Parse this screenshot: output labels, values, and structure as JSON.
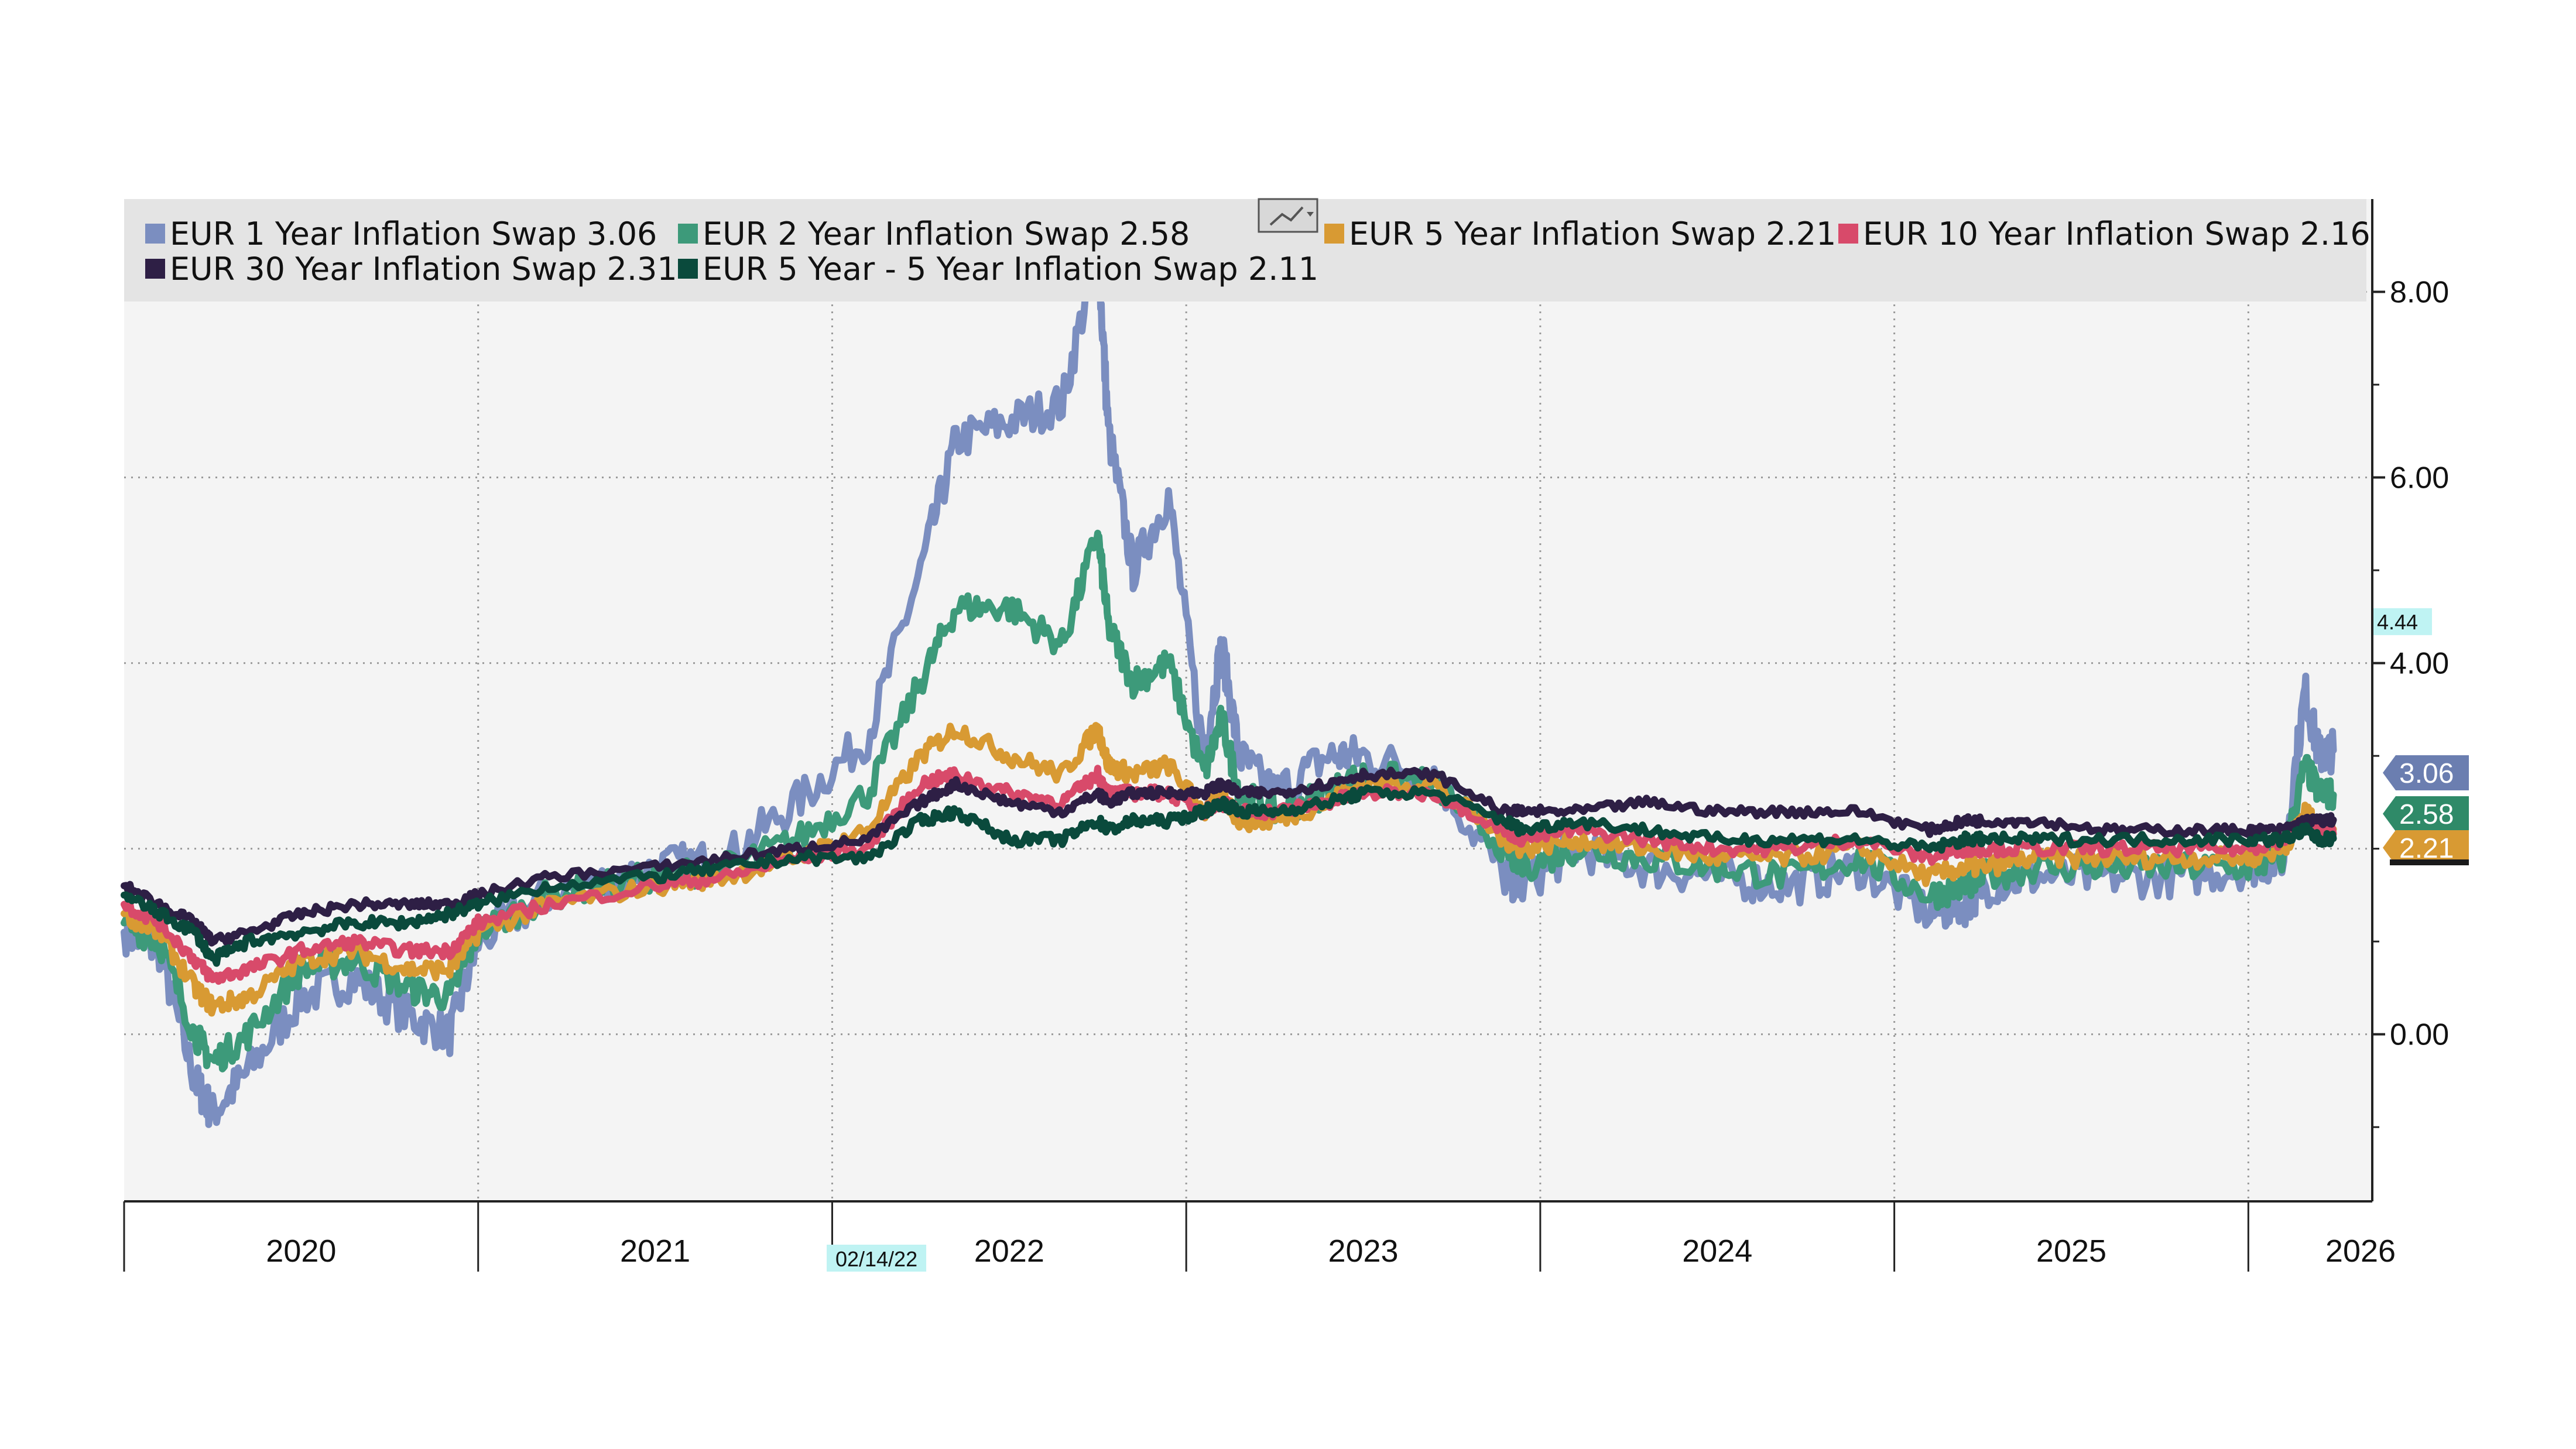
{
  "chart_data": {
    "type": "line",
    "title": "",
    "xlabel": "",
    "ylabel": "",
    "xlim": [
      2019.5,
      2025.85
    ],
    "ylim": [
      -1.8,
      9.0
    ],
    "y_ticks": [
      "0.00",
      "4.00",
      "6.00",
      "8.00"
    ],
    "y_tick_values": [
      0,
      4,
      6,
      8
    ],
    "x_ticks": [
      "2020",
      "2021",
      "2022",
      "2023",
      "2024",
      "2025",
      "2026"
    ],
    "x_tick_positions": [
      2020.0,
      2021.0,
      2022.0,
      2023.0,
      2024.0,
      2025.0,
      2026.0
    ],
    "year_boundaries": [
      2019.5,
      2020.5,
      2021.5,
      2022.5,
      2023.5,
      2024.5,
      2025.5
    ],
    "grid": true,
    "legend_position": "top",
    "crosshair": {
      "date": "02/14/22",
      "x": 2021.625,
      "value": "4.44",
      "y": 4.44
    },
    "series": [
      {
        "name": "EUR 1 Year Inflation Swap",
        "last": "3.06",
        "color": "#7b8ec0",
        "x": [
          2019.5,
          2019.6,
          2019.7,
          2019.75,
          2019.85,
          2020.0,
          2020.15,
          2020.3,
          2020.42,
          2020.5,
          2020.7,
          2021.0,
          2021.2,
          2021.4,
          2021.6,
          2021.75,
          2021.85,
          2022.0,
          2022.15,
          2022.25,
          2022.28,
          2022.35,
          2022.45,
          2022.55,
          2022.6,
          2022.65,
          2022.75,
          2022.9,
          2023.0,
          2023.2,
          2023.4,
          2023.45,
          2023.6,
          2023.8,
          2024.0,
          2024.2,
          2024.4,
          2024.6,
          2024.7,
          2024.75,
          2024.9,
          2025.1,
          2025.3,
          2025.5,
          2025.6,
          2025.66,
          2025.7,
          2025.74
        ],
        "y": [
          1.1,
          0.9,
          -0.5,
          -0.85,
          -0.4,
          0.4,
          0.6,
          0.2,
          0.0,
          1.0,
          1.5,
          1.8,
          1.9,
          2.5,
          3.2,
          5.0,
          6.4,
          6.6,
          6.8,
          8.5,
          6.5,
          5.0,
          5.8,
          3.0,
          4.2,
          3.0,
          2.6,
          3.0,
          3.0,
          2.8,
          1.7,
          1.6,
          2.0,
          1.8,
          1.7,
          1.6,
          1.8,
          1.3,
          1.4,
          1.6,
          1.7,
          1.7,
          1.7,
          1.8,
          1.9,
          3.7,
          3.0,
          3.06
        ]
      },
      {
        "name": "EUR 2 Year Inflation Swap",
        "last": "2.58",
        "color": "#3d9a7a",
        "x": [
          2019.5,
          2019.6,
          2019.7,
          2019.75,
          2019.85,
          2020.0,
          2020.15,
          2020.3,
          2020.42,
          2020.5,
          2020.7,
          2021.0,
          2021.2,
          2021.4,
          2021.6,
          2021.75,
          2021.85,
          2022.0,
          2022.15,
          2022.25,
          2022.28,
          2022.35,
          2022.45,
          2022.55,
          2022.6,
          2022.65,
          2022.75,
          2022.9,
          2023.0,
          2023.2,
          2023.4,
          2023.45,
          2023.6,
          2023.8,
          2024.0,
          2024.2,
          2024.4,
          2024.6,
          2024.7,
          2024.75,
          2024.9,
          2025.1,
          2025.3,
          2025.5,
          2025.6,
          2025.66,
          2025.7,
          2025.74
        ],
        "y": [
          1.2,
          1.0,
          0.0,
          -0.3,
          0.0,
          0.7,
          0.8,
          0.5,
          0.4,
          1.1,
          1.5,
          1.7,
          1.8,
          2.1,
          2.6,
          3.8,
          4.6,
          4.6,
          4.2,
          5.4,
          4.4,
          3.8,
          4.0,
          2.8,
          3.4,
          2.6,
          2.4,
          2.6,
          2.8,
          2.7,
          2.0,
          1.8,
          2.0,
          1.9,
          1.8,
          1.7,
          1.9,
          1.5,
          1.6,
          1.7,
          1.8,
          1.8,
          1.8,
          1.8,
          1.9,
          2.9,
          2.6,
          2.58
        ]
      },
      {
        "name": "EUR 5 Year Inflation Swap",
        "last": "2.21",
        "color": "#d89a33",
        "x": [
          2019.5,
          2019.6,
          2019.7,
          2019.75,
          2019.85,
          2020.0,
          2020.15,
          2020.3,
          2020.42,
          2020.5,
          2020.7,
          2021.0,
          2021.2,
          2021.4,
          2021.6,
          2021.75,
          2021.85,
          2022.0,
          2022.15,
          2022.25,
          2022.28,
          2022.35,
          2022.45,
          2022.55,
          2022.6,
          2022.65,
          2022.75,
          2022.9,
          2023.0,
          2023.2,
          2023.4,
          2023.45,
          2023.6,
          2023.8,
          2024.0,
          2024.2,
          2024.4,
          2024.6,
          2024.7,
          2024.75,
          2024.9,
          2025.1,
          2025.3,
          2025.5,
          2025.6,
          2025.66,
          2025.7,
          2025.74
        ],
        "y": [
          1.3,
          1.1,
          0.5,
          0.3,
          0.4,
          0.8,
          0.9,
          0.7,
          0.7,
          1.1,
          1.4,
          1.6,
          1.7,
          1.9,
          2.2,
          3.0,
          3.3,
          3.0,
          2.8,
          3.3,
          2.9,
          2.8,
          2.9,
          2.4,
          2.6,
          2.3,
          2.3,
          2.5,
          2.7,
          2.7,
          2.1,
          2.0,
          2.1,
          2.0,
          1.9,
          1.9,
          2.0,
          1.7,
          1.8,
          1.8,
          1.9,
          1.9,
          1.9,
          1.9,
          2.0,
          2.4,
          2.2,
          2.21
        ]
      },
      {
        "name": "EUR 10 Year Inflation Swap",
        "last": "2.16",
        "color": "#d84a6a",
        "x": [
          2019.5,
          2019.6,
          2019.7,
          2019.75,
          2019.85,
          2020.0,
          2020.15,
          2020.3,
          2020.42,
          2020.5,
          2020.7,
          2021.0,
          2021.2,
          2021.4,
          2021.6,
          2021.75,
          2021.85,
          2022.0,
          2022.15,
          2022.25,
          2022.28,
          2022.35,
          2022.45,
          2022.55,
          2022.6,
          2022.65,
          2022.75,
          2022.9,
          2023.0,
          2023.2,
          2023.4,
          2023.45,
          2023.6,
          2023.8,
          2024.0,
          2024.2,
          2024.4,
          2024.6,
          2024.7,
          2024.75,
          2024.9,
          2025.1,
          2025.3,
          2025.5,
          2025.6,
          2025.66,
          2025.7,
          2025.74
        ],
        "y": [
          1.4,
          1.2,
          0.8,
          0.6,
          0.7,
          0.9,
          1.0,
          0.9,
          0.9,
          1.2,
          1.4,
          1.6,
          1.7,
          1.9,
          2.0,
          2.7,
          2.8,
          2.6,
          2.5,
          2.8,
          2.6,
          2.6,
          2.6,
          2.4,
          2.5,
          2.4,
          2.4,
          2.5,
          2.6,
          2.6,
          2.2,
          2.1,
          2.2,
          2.1,
          2.0,
          2.0,
          2.1,
          1.9,
          2.0,
          2.0,
          2.0,
          2.0,
          2.0,
          2.0,
          2.1,
          2.3,
          2.2,
          2.16
        ]
      },
      {
        "name": "EUR 30 Year Inflation Swap",
        "last": "2.31",
        "color": "#2e1f45",
        "x": [
          2019.5,
          2019.6,
          2019.7,
          2019.75,
          2019.85,
          2020.0,
          2020.15,
          2020.3,
          2020.42,
          2020.5,
          2020.7,
          2021.0,
          2021.2,
          2021.4,
          2021.6,
          2021.75,
          2021.85,
          2022.0,
          2022.15,
          2022.25,
          2022.28,
          2022.35,
          2022.45,
          2022.55,
          2022.6,
          2022.65,
          2022.75,
          2022.9,
          2023.0,
          2023.2,
          2023.4,
          2023.45,
          2023.6,
          2023.8,
          2024.0,
          2024.2,
          2024.4,
          2024.6,
          2024.7,
          2024.75,
          2024.9,
          2025.1,
          2025.3,
          2025.5,
          2025.6,
          2025.66,
          2025.7,
          2025.74
        ],
        "y": [
          1.6,
          1.4,
          1.2,
          1.0,
          1.1,
          1.3,
          1.4,
          1.4,
          1.4,
          1.5,
          1.7,
          1.8,
          1.9,
          2.0,
          2.1,
          2.5,
          2.7,
          2.5,
          2.4,
          2.6,
          2.5,
          2.6,
          2.6,
          2.6,
          2.7,
          2.6,
          2.6,
          2.7,
          2.8,
          2.8,
          2.4,
          2.4,
          2.4,
          2.5,
          2.4,
          2.4,
          2.4,
          2.2,
          2.3,
          2.3,
          2.3,
          2.2,
          2.2,
          2.2,
          2.2,
          2.3,
          2.3,
          2.31
        ]
      },
      {
        "name": "EUR 5 Year - 5 Year Inflation Swap",
        "last": "2.11",
        "color": "#0a4a3c",
        "x": [
          2019.5,
          2019.6,
          2019.7,
          2019.75,
          2019.85,
          2020.0,
          2020.15,
          2020.3,
          2020.42,
          2020.5,
          2020.7,
          2021.0,
          2021.2,
          2021.4,
          2021.6,
          2021.75,
          2021.85,
          2022.0,
          2022.15,
          2022.25,
          2022.28,
          2022.35,
          2022.45,
          2022.55,
          2022.6,
          2022.65,
          2022.75,
          2022.9,
          2023.0,
          2023.2,
          2023.4,
          2023.45,
          2023.6,
          2023.8,
          2024.0,
          2024.2,
          2024.4,
          2024.6,
          2024.7,
          2024.75,
          2024.9,
          2025.1,
          2025.3,
          2025.5,
          2025.6,
          2025.66,
          2025.7,
          2025.74
        ],
        "y": [
          1.5,
          1.3,
          1.1,
          0.8,
          1.0,
          1.1,
          1.2,
          1.2,
          1.3,
          1.4,
          1.6,
          1.7,
          1.8,
          1.9,
          1.9,
          2.3,
          2.4,
          2.1,
          2.1,
          2.3,
          2.2,
          2.3,
          2.3,
          2.4,
          2.5,
          2.4,
          2.4,
          2.5,
          2.6,
          2.6,
          2.3,
          2.2,
          2.3,
          2.2,
          2.1,
          2.1,
          2.1,
          2.0,
          2.1,
          2.1,
          2.1,
          2.1,
          2.1,
          2.1,
          2.1,
          2.2,
          2.1,
          2.11
        ]
      }
    ]
  }
}
